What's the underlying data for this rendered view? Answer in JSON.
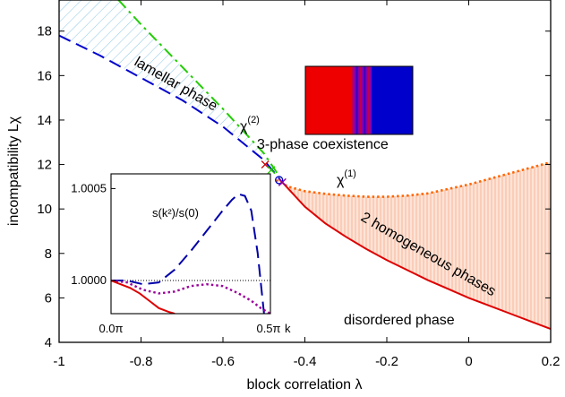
{
  "chart_data": [
    {
      "type": "line",
      "title": "",
      "xlabel": "block correlation λ",
      "ylabel": "incompatibility Lχ",
      "xlim": [
        -1.0,
        0.2
      ],
      "ylim": [
        4,
        19.4
      ],
      "xticks": [
        -1.0,
        -0.8,
        -0.6,
        -0.4,
        -0.2,
        0.0,
        0.2
      ],
      "xtick_labels": [
        "-1",
        "-0.8",
        "-0.6",
        "-0.4",
        "-0.2",
        "0",
        "0.2"
      ],
      "yticks": [
        4,
        6,
        8,
        10,
        12,
        14,
        16,
        18
      ],
      "ytick_labels": [
        "4",
        "6",
        "8",
        "10",
        "12",
        "14",
        "16",
        "18"
      ],
      "grid": false,
      "series": [
        {
          "name": "",
          "color": "#0000cc",
          "style": "dashed",
          "x": [
            -1.0,
            -0.9,
            -0.8,
            -0.7,
            -0.6,
            -0.5,
            -0.46
          ],
          "y": [
            17.8,
            16.9,
            15.9,
            14.9,
            13.7,
            12.2,
            11.3
          ]
        },
        {
          "name": "χ(2)",
          "color": "#22cc00",
          "style": "dash-dot",
          "x": [
            -0.855,
            -0.8,
            -0.7,
            -0.6,
            -0.5,
            -0.46
          ],
          "y": [
            19.4,
            18.3,
            16.4,
            14.5,
            12.5,
            11.4
          ]
        },
        {
          "name": "χ(1)",
          "color": "#ff6600",
          "style": "dotted",
          "x": [
            -0.47,
            -0.44,
            -0.4,
            -0.35,
            -0.3,
            -0.25,
            -0.2,
            -0.15,
            -0.1,
            -0.05,
            0.0,
            0.05,
            0.1,
            0.15,
            0.2
          ],
          "y": [
            11.3,
            11.0,
            10.8,
            10.68,
            10.6,
            10.55,
            10.55,
            10.6,
            10.7,
            10.9,
            11.1,
            11.35,
            11.6,
            11.85,
            12.1
          ]
        },
        {
          "name": "",
          "color": "#dd0000",
          "style": "solid",
          "x": [
            -0.46,
            -0.4,
            -0.35,
            -0.3,
            -0.25,
            -0.2,
            -0.15,
            -0.1,
            -0.05,
            0.0,
            0.05,
            0.1,
            0.15,
            0.2
          ],
          "y": [
            11.3,
            10.1,
            9.35,
            8.75,
            8.2,
            7.7,
            7.25,
            6.8,
            6.4,
            6.0,
            5.65,
            5.3,
            4.95,
            4.6
          ]
        }
      ],
      "markers": [
        {
          "symbol": "x",
          "color": "#cc0000",
          "x": -0.497,
          "y": 12.0
        },
        {
          "symbol": "x",
          "color": "#22cc00",
          "x": -0.482,
          "y": 11.75
        },
        {
          "symbol": "circle",
          "color": "#0000cc",
          "x": -0.463,
          "y": 11.3
        },
        {
          "symbol": "x",
          "color": "#8800aa",
          "x": -0.455,
          "y": 11.2
        }
      ],
      "annotations": [
        "lamellar phase",
        "χ(2)",
        "3-phase coexistence",
        "χ(1)",
        "2 homogeneous phases",
        "disordered phase"
      ],
      "annotations_display": {
        "chi2_base": "χ",
        "chi2_sup": "(2)",
        "chi1_base": "χ",
        "chi1_sup": "(1)"
      },
      "legend_colors": {
        "red": "#ee0000",
        "blue": "#0000cc",
        "purple": "#8800aa"
      }
    },
    {
      "type": "line",
      "title": "s(k²)/s(0)",
      "xlabel": "k",
      "xlim": [
        0,
        0.5
      ],
      "xlim_unit": "π",
      "xtick_labels": [
        "0.0π",
        "0.5π"
      ],
      "ylim": [
        0.99982,
        1.00058
      ],
      "yticks": [
        1.0,
        1.0005
      ],
      "ytick_labels": [
        "1.0000",
        "1.0005"
      ],
      "reference_line": 1.0,
      "series": [
        {
          "name": "",
          "color": "#0000aa",
          "style": "dashed",
          "x": [
            0.0,
            0.05,
            0.1,
            0.15,
            0.2,
            0.25,
            0.3,
            0.35,
            0.38,
            0.4,
            0.42,
            0.44,
            0.46,
            0.48
          ],
          "y": [
            1.0,
            1.0,
            0.99998,
            0.99999,
            1.00006,
            1.00016,
            1.00027,
            1.00038,
            1.00044,
            1.00047,
            1.00046,
            1.00038,
            1.00015,
            0.99982
          ]
        },
        {
          "name": "",
          "color": "#990099",
          "style": "dotted",
          "x": [
            0.0,
            0.05,
            0.1,
            0.15,
            0.2,
            0.25,
            0.3,
            0.35,
            0.4,
            0.44,
            0.47,
            0.5
          ],
          "y": [
            1.0,
            0.99999,
            0.99995,
            0.99993,
            0.99994,
            0.99997,
            0.99998,
            0.99997,
            0.99993,
            0.99989,
            0.99985,
            0.99982
          ]
        },
        {
          "name": "",
          "color": "#dd0000",
          "style": "solid",
          "x": [
            0.0,
            0.03,
            0.06,
            0.09,
            0.12,
            0.15,
            0.18,
            0.2
          ],
          "y": [
            1.0,
            0.99998,
            0.99996,
            0.99993,
            0.99989,
            0.99985,
            0.99983,
            0.99982
          ]
        }
      ]
    }
  ]
}
